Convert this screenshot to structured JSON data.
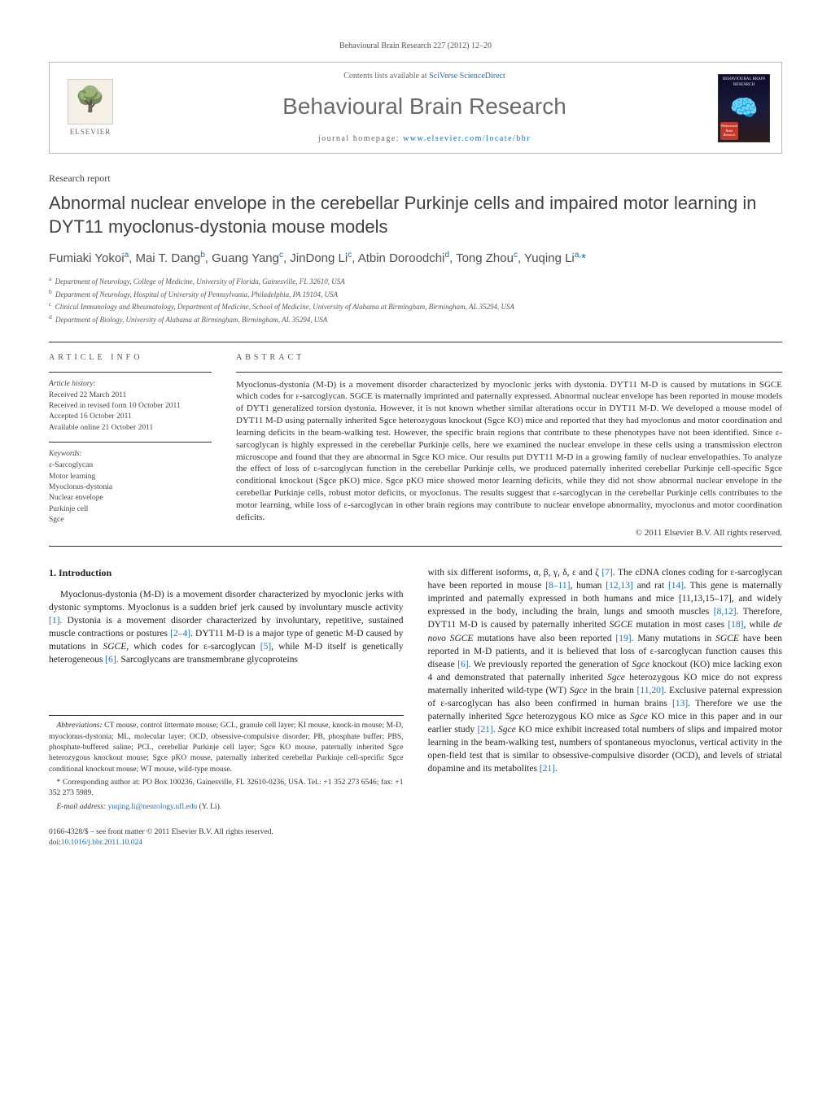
{
  "journal_ref": "Behavioural Brain Research 227 (2012) 12–20",
  "header": {
    "elsevier": "ELSEVIER",
    "contents_prefix": "Contents lists available at ",
    "contents_link": "SciVerse ScienceDirect",
    "journal_title": "Behavioural Brain Research",
    "homepage_prefix": "journal homepage: ",
    "homepage_url": "www.elsevier.com/locate/bbr",
    "cover_label": "BEHAVIOURAL BRAIN RESEARCH",
    "cover_badge": "Behavioural Brain Research"
  },
  "article_type": "Research report",
  "title": "Abnormal nuclear envelope in the cerebellar Purkinje cells and impaired motor learning in DYT11 myoclonus-dystonia mouse models",
  "authors_html": "Fumiaki Yokoi<sup>a</sup>, Mai T. Dang<sup>b</sup>, Guang Yang<sup>c</sup>, JinDong Li<sup>c</sup>, Atbin Doroodchi<sup>d</sup>, Tong Zhou<sup>c</sup>, Yuqing Li<sup>a,</sup><span class=\"star\">*</span>",
  "affiliations": [
    {
      "sup": "a",
      "text": "Department of Neurology, College of Medicine, University of Florida, Gainesville, FL 32610, USA"
    },
    {
      "sup": "b",
      "text": "Department of Neurology, Hospital of University of Pennsylvania, Philadelphia, PA 19104, USA"
    },
    {
      "sup": "c",
      "text": "Clinical Immunology and Rheumatology, Department of Medicine, School of Medicine, University of Alabama at Birmingham, Birmingham, AL 35294, USA"
    },
    {
      "sup": "d",
      "text": "Department of Biology, University of Alabama at Birmingham, Birmingham, AL 35294, USA"
    }
  ],
  "info": {
    "label": "ARTICLE INFO",
    "history_hdr": "Article history:",
    "history": [
      "Received 22 March 2011",
      "Received in revised form 10 October 2011",
      "Accepted 16 October 2011",
      "Available online 21 October 2011"
    ],
    "keywords_hdr": "Keywords:",
    "keywords": [
      "ε-Sarcoglycan",
      "Motor learning",
      "Myoclonus-dystonia",
      "Nuclear envelope",
      "Purkinje cell",
      "Sgce"
    ]
  },
  "abstract": {
    "label": "ABSTRACT",
    "text": "Myoclonus-dystonia (M-D) is a movement disorder characterized by myoclonic jerks with dystonia. DYT11 M-D is caused by mutations in SGCE which codes for ε-sarcoglycan. SGCE is maternally imprinted and paternally expressed. Abnormal nuclear envelope has been reported in mouse models of DYT1 generalized torsion dystonia. However, it is not known whether similar alterations occur in DYT11 M-D. We developed a mouse model of DYT11 M-D using paternally inherited Sgce heterozygous knockout (Sgce KO) mice and reported that they had myoclonus and motor coordination and learning deficits in the beam-walking test. However, the specific brain regions that contribute to these phenotypes have not been identified. Since ε-sarcoglycan is highly expressed in the cerebellar Purkinje cells, here we examined the nuclear envelope in these cells using a transmission electron microscope and found that they are abnormal in Sgce KO mice. Our results put DYT11 M-D in a growing family of nuclear envelopathies. To analyze the effect of loss of ε-sarcoglycan function in the cerebellar Purkinje cells, we produced paternally inherited cerebellar Purkinje cell-specific Sgce conditional knockout (Sgce pKO) mice. Sgce pKO mice showed motor learning deficits, while they did not show abnormal nuclear envelope in the cerebellar Purkinje cells, robust motor deficits, or myoclonus. The results suggest that ε-sarcoglycan in the cerebellar Purkinje cells contributes to the motor learning, while loss of ε-sarcoglycan in other brain regions may contribute to nuclear envelope abnormality, myoclonus and motor coordination deficits.",
    "copyright": "© 2011 Elsevier B.V. All rights reserved."
  },
  "body": {
    "heading": "1. Introduction",
    "col1": "Myoclonus-dystonia (M-D) is a movement disorder characterized by myoclonic jerks with dystonic symptoms. Myoclonus is a sudden brief jerk caused by involuntary muscle activity [1]. Dystonia is a movement disorder characterized by involuntary, repetitive, sustained muscle contractions or postures [2–4]. DYT11 M-D is a major type of genetic M-D caused by mutations in SGCE, which codes for ε-sarcoglycan [5], while M-D itself is genetically heterogeneous [6]. Sarcoglycans are transmembrane glycoproteins",
    "col2": "with six different isoforms, α, β, γ, δ, ε and ζ [7]. The cDNA clones coding for ε-sarcoglycan have been reported in mouse [8–11], human [12,13] and rat [14]. This gene is maternally imprinted and paternally expressed in both humans and mice [11,13,15–17], and widely expressed in the body, including the brain, lungs and smooth muscles [8,12]. Therefore, DYT11 M-D is caused by paternally inherited SGCE mutation in most cases [18], while de novo SGCE mutations have also been reported [19]. Many mutations in SGCE have been reported in M-D patients, and it is believed that loss of ε-sarcoglycan function causes this disease [6]. We previously reported the generation of Sgce knockout (KO) mice lacking exon 4 and demonstrated that paternally inherited Sgce heterozygous KO mice do not express maternally inherited wild-type (WT) Sgce in the brain [11,20]. Exclusive paternal expression of ε-sarcoglycan has also been confirmed in human brains [13]. Therefore we use the paternally inherited Sgce heterozygous KO mice as Sgce KO mice in this paper and in our earlier study [21]. Sgce KO mice exhibit increased total numbers of slips and impaired motor learning in the beam-walking test, numbers of spontaneous myoclonus, vertical activity in the open-field test that is similar to obsessive-compulsive disorder (OCD), and levels of striatal dopamine and its metabolites [21]."
  },
  "footnotes": {
    "abbrev_label": "Abbreviations:",
    "abbrev": "CT mouse, control littermate mouse; GCL, granule cell layer; KI mouse, knock-in mouse; M-D, myoclonus-dystonia; ML, molecular layer; OCD, obsessive-compulsive disorder; PB, phosphate buffer; PBS, phosphate-buffered saline; PCL, cerebellar Purkinje cell layer; Sgce KO mouse, paternally inherited Sgce heterozygous knockout mouse; Sgce pKO mouse, paternally inherited cerebellar Purkinje cell-specific Sgce conditional knockout mouse; WT mouse, wild-type mouse.",
    "corr": "Corresponding author at: PO Box 100236, Gainesville, FL 32610-0236, USA. Tel.: +1 352 273 6546; fax: +1 352 273 5989.",
    "email_label": "E-mail address:",
    "email": "yuqing.li@neurology.ufl.edu",
    "email_suffix": "(Y. Li)."
  },
  "doi": {
    "line1": "0166-4328/$ – see front matter © 2011 Elsevier B.V. All rights reserved.",
    "line2_prefix": "doi:",
    "line2_link": "10.1016/j.bbr.2011.10.024"
  },
  "colors": {
    "link": "#1a6dc4",
    "text": "#333333",
    "heading_gray": "#6a6a6a"
  }
}
